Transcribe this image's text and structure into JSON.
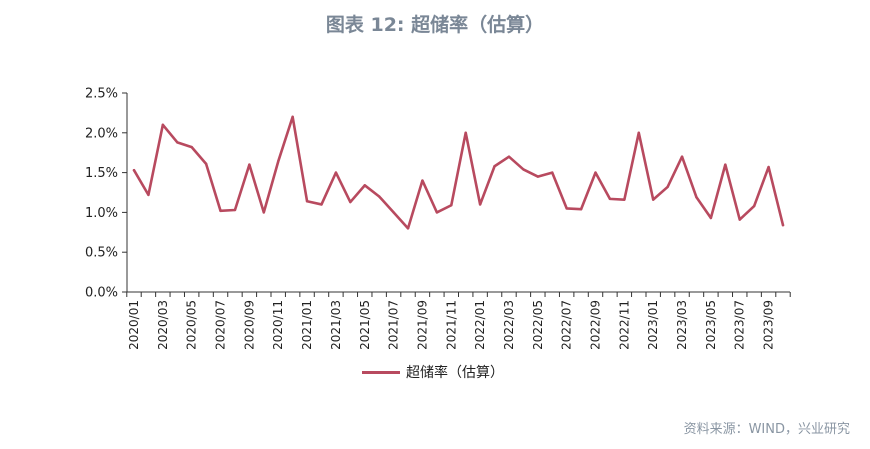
{
  "title": "图表 12: 超储率（估算）",
  "source": "资料来源：WIND，兴业研究",
  "colors": {
    "series": "#b84a5f",
    "title": "#7a8796",
    "axis": "#333333"
  },
  "chart_data": {
    "type": "line",
    "title": "图表 12: 超储率（估算）",
    "ylim": [
      0,
      2.5
    ],
    "y_ticks": [
      "0.0%",
      "0.5%",
      "1.0%",
      "1.5%",
      "2.0%",
      "2.5%"
    ],
    "y_tick_values": [
      0,
      0.5,
      1.0,
      1.5,
      2.0,
      2.5
    ],
    "grid": false,
    "legend_position": "bottom",
    "x_tick_labels": [
      "2020/01",
      "2020/03",
      "2020/05",
      "2020/07",
      "2020/09",
      "2020/11",
      "2021/01",
      "2021/03",
      "2021/05",
      "2021/07",
      "2021/09",
      "2021/11",
      "2022/01",
      "2022/03",
      "2022/05",
      "2022/07",
      "2022/09",
      "2022/11",
      "2023/01",
      "2023/03",
      "2023/05",
      "2023/07",
      "2023/09"
    ],
    "x": [
      "2020/01",
      "2020/02",
      "2020/03",
      "2020/04",
      "2020/05",
      "2020/06",
      "2020/07",
      "2020/08",
      "2020/09",
      "2020/10",
      "2020/11",
      "2020/12",
      "2021/01",
      "2021/02",
      "2021/03",
      "2021/04",
      "2021/05",
      "2021/06",
      "2021/07",
      "2021/08",
      "2021/09",
      "2021/10",
      "2021/11",
      "2021/12",
      "2022/01",
      "2022/02",
      "2022/03",
      "2022/04",
      "2022/05",
      "2022/06",
      "2022/07",
      "2022/08",
      "2022/09",
      "2022/10",
      "2022/11",
      "2022/12",
      "2023/01",
      "2023/02",
      "2023/03",
      "2023/04",
      "2023/05",
      "2023/06",
      "2023/07",
      "2023/08",
      "2023/09",
      "2023/10"
    ],
    "series": [
      {
        "name": "超储率（估算）",
        "values": [
          1.53,
          1.22,
          2.1,
          1.88,
          1.82,
          1.61,
          1.02,
          1.03,
          1.6,
          1.0,
          1.64,
          2.2,
          1.14,
          1.1,
          1.5,
          1.13,
          1.34,
          1.2,
          1.0,
          0.8,
          1.4,
          1.0,
          1.09,
          2.0,
          1.1,
          1.58,
          1.7,
          1.54,
          1.45,
          1.5,
          1.05,
          1.04,
          1.5,
          1.17,
          1.16,
          2.0,
          1.16,
          1.32,
          1.7,
          1.19,
          0.93,
          1.6,
          0.91,
          1.08,
          1.57,
          0.84
        ]
      }
    ]
  }
}
